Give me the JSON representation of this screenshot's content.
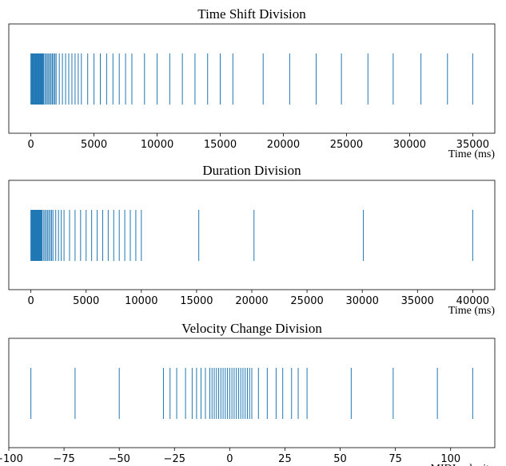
{
  "chart_data": [
    {
      "type": "event",
      "title": "Time Shift Division",
      "xlabel": "Time (ms)",
      "color": "#1f77b4",
      "xlim": [
        -1750,
        36750
      ],
      "xticks": [
        0,
        5000,
        10000,
        15000,
        20000,
        25000,
        30000,
        35000
      ],
      "values": [
        0,
        50,
        100,
        150,
        200,
        250,
        300,
        350,
        400,
        450,
        500,
        550,
        600,
        650,
        700,
        750,
        800,
        850,
        900,
        950,
        1000,
        1100,
        1200,
        1300,
        1400,
        1500,
        1600,
        1700,
        1800,
        1900,
        2000,
        2250,
        2500,
        2750,
        3000,
        3250,
        3500,
        3750,
        4000,
        4500,
        5000,
        5500,
        6000,
        6500,
        7000,
        7500,
        8000,
        9000,
        10000,
        11000,
        12000,
        13000,
        14000,
        15000,
        16000,
        18400,
        20500,
        22600,
        24600,
        26700,
        28700,
        30900,
        33000,
        35000
      ]
    },
    {
      "type": "event",
      "title": "Duration Division",
      "xlabel": "Time (ms)",
      "color": "#1f77b4",
      "xlim": [
        -2000,
        42000
      ],
      "xticks": [
        0,
        5000,
        10000,
        15000,
        20000,
        25000,
        30000,
        35000,
        40000
      ],
      "values": [
        0,
        50,
        100,
        150,
        200,
        250,
        300,
        350,
        400,
        450,
        500,
        550,
        600,
        650,
        700,
        750,
        800,
        850,
        900,
        950,
        1000,
        1125,
        1250,
        1375,
        1500,
        1625,
        1750,
        1875,
        2000,
        2250,
        2500,
        2750,
        3000,
        3500,
        4000,
        4500,
        5000,
        5500,
        6000,
        6500,
        7000,
        7500,
        8000,
        8500,
        9000,
        9500,
        10000,
        15200,
        20200,
        30100,
        40000
      ]
    },
    {
      "type": "event",
      "title": "Velocity Change Division",
      "xlabel": "MIDI velocity",
      "color": "#1f77b4",
      "xlim": [
        -100,
        120
      ],
      "xticks": [
        {
          "value": -100,
          "label": "−100"
        },
        {
          "value": -75,
          "label": "−75"
        },
        {
          "value": -50,
          "label": "−50"
        },
        {
          "value": -25,
          "label": "−25"
        },
        0,
        25,
        50,
        75,
        100
      ],
      "values": [
        -90,
        -70,
        -50,
        -30,
        -27,
        -24,
        -20,
        -17,
        -15,
        -13,
        -11,
        -9,
        -8,
        -7,
        -6,
        -5,
        -4,
        -3,
        -2,
        -1,
        0,
        1,
        2,
        3,
        4,
        5,
        6,
        7,
        8,
        9,
        10,
        13,
        17,
        21,
        24,
        28,
        31,
        35,
        55,
        74,
        94,
        110
      ]
    }
  ]
}
